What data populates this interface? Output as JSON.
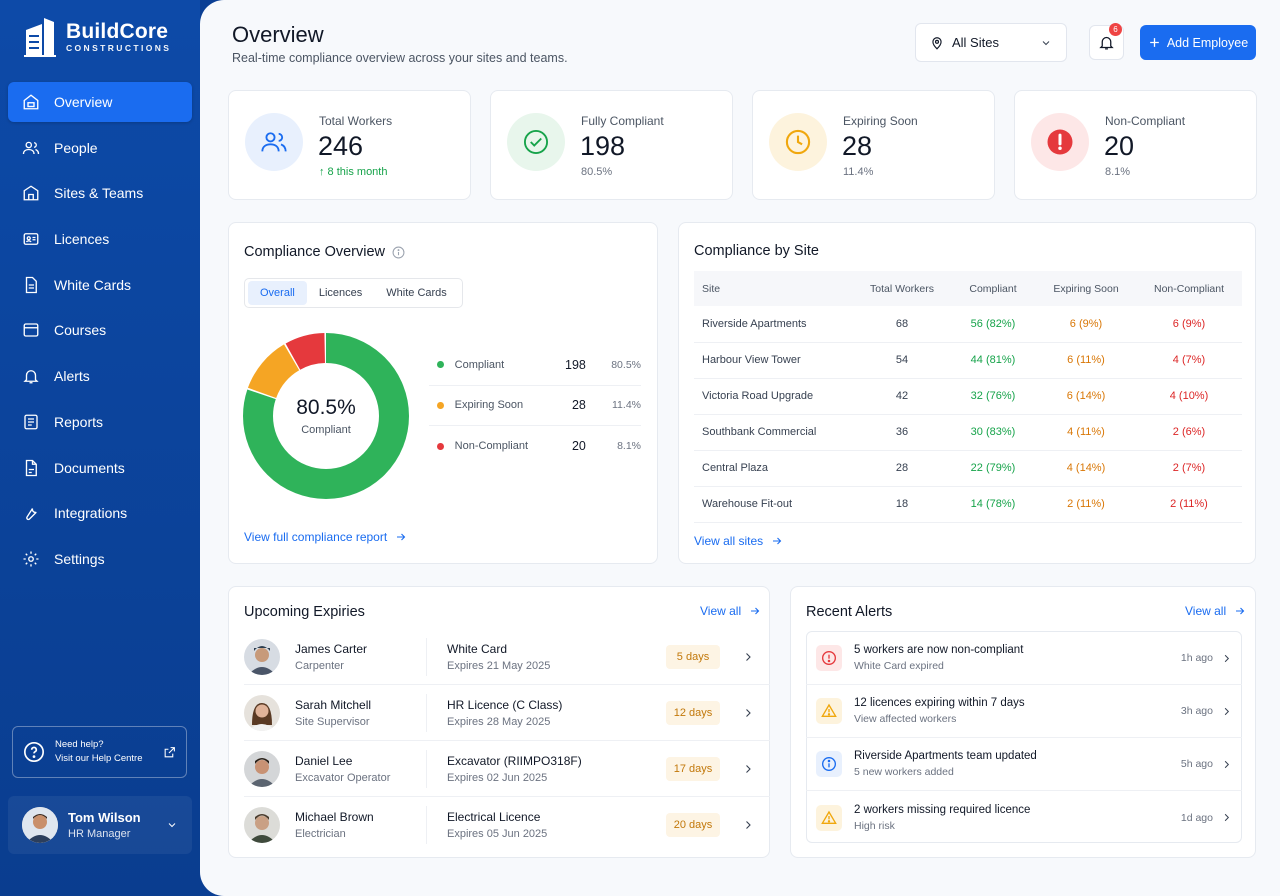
{
  "brand": {
    "name": "BuildCore",
    "sub": "CONSTRUCTIONS"
  },
  "nav": [
    {
      "label": "Overview",
      "icon": "home-icon"
    },
    {
      "label": "People",
      "icon": "people-icon"
    },
    {
      "label": "Sites & Teams",
      "icon": "building-icon"
    },
    {
      "label": "Licences",
      "icon": "id-card-icon"
    },
    {
      "label": "White Cards",
      "icon": "document-icon"
    },
    {
      "label": "Courses",
      "icon": "course-icon"
    },
    {
      "label": "Alerts",
      "icon": "bell-icon"
    },
    {
      "label": "Reports",
      "icon": "report-icon"
    },
    {
      "label": "Documents",
      "icon": "documents-icon"
    },
    {
      "label": "Integrations",
      "icon": "wrench-icon"
    },
    {
      "label": "Settings",
      "icon": "gear-icon"
    }
  ],
  "help": {
    "line1": "Need help?",
    "line2": "Visit our Help Centre"
  },
  "user": {
    "name": "Tom Wilson",
    "role": "HR Manager"
  },
  "header": {
    "title": "Overview",
    "subtitle": "Real-time compliance overview across your sites and teams.",
    "site_select": "All Sites",
    "bell_count": "6",
    "add_button": "Add Employee"
  },
  "stats": [
    {
      "label": "Total Workers",
      "value": "246",
      "sub": "↑ 8 this month"
    },
    {
      "label": "Fully Compliant",
      "value": "198",
      "sub": "80.5%"
    },
    {
      "label": "Expiring Soon",
      "value": "28",
      "sub": "11.4%"
    },
    {
      "label": "Non-Compliant",
      "value": "20",
      "sub": "8.1%"
    }
  ],
  "compliance": {
    "title": "Compliance Overview",
    "tabs": [
      "Overall",
      "Licences",
      "White Cards"
    ],
    "center_pct": "80.5%",
    "center_label": "Compliant",
    "legend": [
      {
        "name": "Compliant",
        "value": "198",
        "pct": "80.5%",
        "color": "#2fb35a"
      },
      {
        "name": "Expiring Soon",
        "value": "28",
        "pct": "11.4%",
        "color": "#f5a524"
      },
      {
        "name": "Non-Compliant",
        "value": "20",
        "pct": "8.1%",
        "color": "#e5393d"
      }
    ],
    "slices": [
      198,
      28,
      20
    ],
    "link": "View full compliance report"
  },
  "sites": {
    "title": "Compliance by Site",
    "headers": [
      "Site",
      "Total Workers",
      "Compliant",
      "Expiring Soon",
      "Non-Compliant"
    ],
    "rows": [
      [
        "Riverside Apartments",
        "68",
        "56 (82%)",
        "6 (9%)",
        "6 (9%)"
      ],
      [
        "Harbour View Tower",
        "54",
        "44 (81%)",
        "6 (11%)",
        "4 (7%)"
      ],
      [
        "Victoria Road Upgrade",
        "42",
        "32 (76%)",
        "6 (14%)",
        "4 (10%)"
      ],
      [
        "Southbank Commercial",
        "36",
        "30 (83%)",
        "4 (11%)",
        "2 (6%)"
      ],
      [
        "Central Plaza",
        "28",
        "22 (79%)",
        "4 (14%)",
        "2 (7%)"
      ],
      [
        "Warehouse Fit-out",
        "18",
        "14 (78%)",
        "2 (11%)",
        "2 (11%)"
      ]
    ],
    "link": "View all sites"
  },
  "expiries": {
    "title": "Upcoming Expiries",
    "view_all": "View all",
    "rows": [
      {
        "name": "James Carter",
        "role": "Carpenter",
        "item": "White Card",
        "date": "Expires 21 May 2025",
        "days": "5 days"
      },
      {
        "name": "Sarah Mitchell",
        "role": "Site Supervisor",
        "item": "HR Licence (C Class)",
        "date": "Expires 28 May 2025",
        "days": "12 days"
      },
      {
        "name": "Daniel Lee",
        "role": "Excavator Operator",
        "item": "Excavator (RIIMPO318F)",
        "date": "Expires 02 Jun 2025",
        "days": "17 days"
      },
      {
        "name": "Michael Brown",
        "role": "Electrician",
        "item": "Electrical Licence",
        "date": "Expires 05 Jun 2025",
        "days": "20 days"
      }
    ]
  },
  "alerts": {
    "title": "Recent Alerts",
    "view_all": "View all",
    "rows": [
      {
        "title": "5 workers are now non-compliant",
        "sub": "White Card expired",
        "time": "1h ago",
        "type": "error"
      },
      {
        "title": "12 licences expiring within 7 days",
        "sub": "View affected workers",
        "time": "3h ago",
        "type": "warning"
      },
      {
        "title": "Riverside Apartments team updated",
        "sub": "5 new workers added",
        "time": "5h ago",
        "type": "info"
      },
      {
        "title": "2 workers missing required licence",
        "sub": "High risk",
        "time": "1d ago",
        "type": "warning"
      }
    ]
  }
}
